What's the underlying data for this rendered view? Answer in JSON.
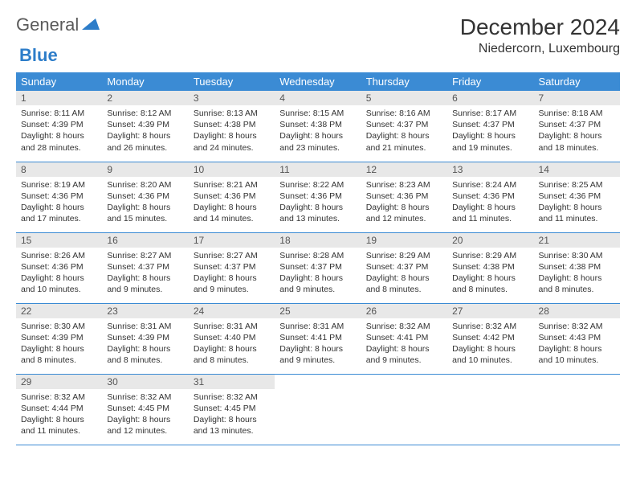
{
  "logo": {
    "word1": "General",
    "word2": "Blue"
  },
  "title": "December 2024",
  "location": "Niedercorn, Luxembourg",
  "colors": {
    "header_bg": "#3b8bd4",
    "header_text": "#ffffff",
    "daynum_bg": "#e8e8e8",
    "border": "#3b8bd4",
    "logo_gray": "#5a5a5a",
    "logo_blue": "#2d7dc9"
  },
  "day_headers": [
    "Sunday",
    "Monday",
    "Tuesday",
    "Wednesday",
    "Thursday",
    "Friday",
    "Saturday"
  ],
  "weeks": [
    [
      {
        "n": "1",
        "sr": "8:11 AM",
        "ss": "4:39 PM",
        "dl": "8 hours and 28 minutes."
      },
      {
        "n": "2",
        "sr": "8:12 AM",
        "ss": "4:39 PM",
        "dl": "8 hours and 26 minutes."
      },
      {
        "n": "3",
        "sr": "8:13 AM",
        "ss": "4:38 PM",
        "dl": "8 hours and 24 minutes."
      },
      {
        "n": "4",
        "sr": "8:15 AM",
        "ss": "4:38 PM",
        "dl": "8 hours and 23 minutes."
      },
      {
        "n": "5",
        "sr": "8:16 AM",
        "ss": "4:37 PM",
        "dl": "8 hours and 21 minutes."
      },
      {
        "n": "6",
        "sr": "8:17 AM",
        "ss": "4:37 PM",
        "dl": "8 hours and 19 minutes."
      },
      {
        "n": "7",
        "sr": "8:18 AM",
        "ss": "4:37 PM",
        "dl": "8 hours and 18 minutes."
      }
    ],
    [
      {
        "n": "8",
        "sr": "8:19 AM",
        "ss": "4:36 PM",
        "dl": "8 hours and 17 minutes."
      },
      {
        "n": "9",
        "sr": "8:20 AM",
        "ss": "4:36 PM",
        "dl": "8 hours and 15 minutes."
      },
      {
        "n": "10",
        "sr": "8:21 AM",
        "ss": "4:36 PM",
        "dl": "8 hours and 14 minutes."
      },
      {
        "n": "11",
        "sr": "8:22 AM",
        "ss": "4:36 PM",
        "dl": "8 hours and 13 minutes."
      },
      {
        "n": "12",
        "sr": "8:23 AM",
        "ss": "4:36 PM",
        "dl": "8 hours and 12 minutes."
      },
      {
        "n": "13",
        "sr": "8:24 AM",
        "ss": "4:36 PM",
        "dl": "8 hours and 11 minutes."
      },
      {
        "n": "14",
        "sr": "8:25 AM",
        "ss": "4:36 PM",
        "dl": "8 hours and 11 minutes."
      }
    ],
    [
      {
        "n": "15",
        "sr": "8:26 AM",
        "ss": "4:36 PM",
        "dl": "8 hours and 10 minutes."
      },
      {
        "n": "16",
        "sr": "8:27 AM",
        "ss": "4:37 PM",
        "dl": "8 hours and 9 minutes."
      },
      {
        "n": "17",
        "sr": "8:27 AM",
        "ss": "4:37 PM",
        "dl": "8 hours and 9 minutes."
      },
      {
        "n": "18",
        "sr": "8:28 AM",
        "ss": "4:37 PM",
        "dl": "8 hours and 9 minutes."
      },
      {
        "n": "19",
        "sr": "8:29 AM",
        "ss": "4:37 PM",
        "dl": "8 hours and 8 minutes."
      },
      {
        "n": "20",
        "sr": "8:29 AM",
        "ss": "4:38 PM",
        "dl": "8 hours and 8 minutes."
      },
      {
        "n": "21",
        "sr": "8:30 AM",
        "ss": "4:38 PM",
        "dl": "8 hours and 8 minutes."
      }
    ],
    [
      {
        "n": "22",
        "sr": "8:30 AM",
        "ss": "4:39 PM",
        "dl": "8 hours and 8 minutes."
      },
      {
        "n": "23",
        "sr": "8:31 AM",
        "ss": "4:39 PM",
        "dl": "8 hours and 8 minutes."
      },
      {
        "n": "24",
        "sr": "8:31 AM",
        "ss": "4:40 PM",
        "dl": "8 hours and 8 minutes."
      },
      {
        "n": "25",
        "sr": "8:31 AM",
        "ss": "4:41 PM",
        "dl": "8 hours and 9 minutes."
      },
      {
        "n": "26",
        "sr": "8:32 AM",
        "ss": "4:41 PM",
        "dl": "8 hours and 9 minutes."
      },
      {
        "n": "27",
        "sr": "8:32 AM",
        "ss": "4:42 PM",
        "dl": "8 hours and 10 minutes."
      },
      {
        "n": "28",
        "sr": "8:32 AM",
        "ss": "4:43 PM",
        "dl": "8 hours and 10 minutes."
      }
    ],
    [
      {
        "n": "29",
        "sr": "8:32 AM",
        "ss": "4:44 PM",
        "dl": "8 hours and 11 minutes."
      },
      {
        "n": "30",
        "sr": "8:32 AM",
        "ss": "4:45 PM",
        "dl": "8 hours and 12 minutes."
      },
      {
        "n": "31",
        "sr": "8:32 AM",
        "ss": "4:45 PM",
        "dl": "8 hours and 13 minutes."
      },
      null,
      null,
      null,
      null
    ]
  ],
  "labels": {
    "sunrise": "Sunrise:",
    "sunset": "Sunset:",
    "daylight": "Daylight:"
  }
}
